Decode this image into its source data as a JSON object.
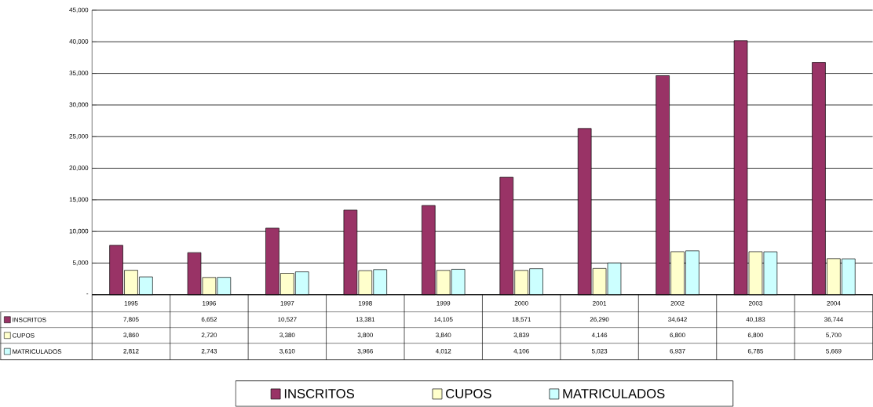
{
  "chart_data": {
    "type": "bar",
    "categories": [
      "1995",
      "1996",
      "1997",
      "1998",
      "1999",
      "2000",
      "2001",
      "2002",
      "2003",
      "2004"
    ],
    "series": [
      {
        "name": "INSCRITOS",
        "color": "#993366",
        "values": [
          7805,
          6652,
          10527,
          13381,
          14105,
          18571,
          26290,
          34642,
          40183,
          36744
        ],
        "value_labels": [
          "7,805",
          "6,652",
          "10,527",
          "13,381",
          "14,105",
          "18,571",
          "26,290",
          "34,642",
          "40,183",
          "36,744"
        ]
      },
      {
        "name": "CUPOS",
        "color": "#ffffcc",
        "values": [
          3860,
          2720,
          3380,
          3800,
          3840,
          3839,
          4146,
          6800,
          6800,
          5700
        ],
        "value_labels": [
          "3,860",
          "2,720",
          "3,380",
          "3,800",
          "3,840",
          "3,839",
          "4,146",
          "6,800",
          "6,800",
          "5,700"
        ]
      },
      {
        "name": "MATRICULADOS",
        "color": "#ccffff",
        "values": [
          2812,
          2743,
          3610,
          3966,
          4012,
          4106,
          5023,
          6937,
          6785,
          5669
        ],
        "value_labels": [
          "2,812",
          "2,743",
          "3,610",
          "3,966",
          "4,012",
          "4,106",
          "5,023",
          "6,937",
          "6,785",
          "5,669"
        ]
      }
    ],
    "ylim": [
      0,
      45000
    ],
    "yticks": [
      {
        "value": 0,
        "label": "-"
      },
      {
        "value": 5000,
        "label": "5,000"
      },
      {
        "value": 10000,
        "label": "10,000"
      },
      {
        "value": 15000,
        "label": "15,000"
      },
      {
        "value": 20000,
        "label": "20,000"
      },
      {
        "value": 25000,
        "label": "25,000"
      },
      {
        "value": 30000,
        "label": "30,000"
      },
      {
        "value": 35000,
        "label": "35,000"
      },
      {
        "value": 40000,
        "label": "40,000"
      },
      {
        "value": 45000,
        "label": "45,000"
      }
    ],
    "grid": "y",
    "legend": "bottom"
  }
}
